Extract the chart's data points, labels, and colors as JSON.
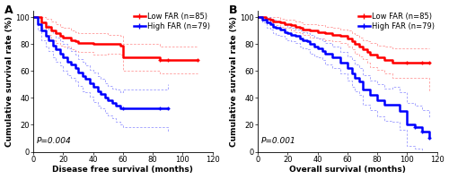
{
  "panel_A": {
    "label": "A",
    "xlabel": "Disease free survival (months)",
    "ylabel": "Cumulative survival rate (%)",
    "pvalue": "P=0.004",
    "xlim": [
      0,
      120
    ],
    "ylim": [
      0,
      105
    ],
    "xticks": [
      0,
      20,
      40,
      60,
      80,
      100,
      120
    ],
    "yticks": [
      0,
      20,
      40,
      60,
      80,
      100
    ],
    "low_far": {
      "label": "Low FAR (n=85)",
      "color": "#ff0000",
      "x": [
        0,
        5,
        8,
        12,
        15,
        18,
        20,
        25,
        28,
        30,
        35,
        40,
        45,
        50,
        55,
        58,
        60,
        65,
        70,
        75,
        80,
        85,
        90,
        110
      ],
      "y": [
        100,
        96,
        93,
        90,
        88,
        86,
        85,
        83,
        82,
        81,
        81,
        80,
        80,
        80,
        80,
        79,
        70,
        70,
        70,
        70,
        70,
        68,
        68,
        68
      ]
    },
    "low_far_ci_upper": {
      "color": "#ff0000",
      "x": [
        0,
        5,
        8,
        12,
        15,
        18,
        20,
        25,
        28,
        30,
        35,
        40,
        45,
        50,
        55,
        58,
        60,
        65,
        70,
        75,
        80,
        85,
        90,
        110
      ],
      "y": [
        100,
        100,
        99,
        97,
        95,
        93,
        92,
        90,
        89,
        88,
        88,
        88,
        88,
        87,
        87,
        86,
        80,
        80,
        80,
        80,
        80,
        78,
        78,
        78
      ]
    },
    "low_far_ci_lower": {
      "color": "#ff0000",
      "x": [
        0,
        5,
        8,
        12,
        15,
        18,
        20,
        25,
        28,
        30,
        35,
        40,
        45,
        50,
        55,
        58,
        60,
        65,
        70,
        75,
        80,
        85,
        90,
        110
      ],
      "y": [
        100,
        92,
        87,
        83,
        81,
        79,
        78,
        76,
        75,
        74,
        74,
        72,
        72,
        73,
        73,
        72,
        60,
        60,
        60,
        60,
        60,
        58,
        58,
        58
      ]
    },
    "high_far": {
      "label": "High FAR (n=79)",
      "color": "#0000ff",
      "x": [
        0,
        3,
        5,
        8,
        10,
        13,
        15,
        18,
        20,
        23,
        25,
        28,
        30,
        33,
        35,
        38,
        40,
        43,
        45,
        48,
        50,
        53,
        55,
        58,
        60,
        85,
        90
      ],
      "y": [
        100,
        95,
        90,
        86,
        83,
        79,
        76,
        73,
        70,
        67,
        65,
        62,
        59,
        56,
        54,
        51,
        48,
        45,
        43,
        40,
        38,
        36,
        34,
        32,
        32,
        32,
        32
      ]
    },
    "high_far_ci_upper": {
      "color": "#0000ff",
      "x": [
        0,
        3,
        5,
        8,
        10,
        13,
        15,
        18,
        20,
        23,
        25,
        28,
        30,
        33,
        35,
        38,
        40,
        43,
        45,
        48,
        50,
        53,
        55,
        58,
        60,
        85,
        90
      ],
      "y": [
        100,
        100,
        97,
        94,
        91,
        88,
        85,
        82,
        80,
        77,
        75,
        72,
        69,
        67,
        64,
        61,
        59,
        56,
        54,
        51,
        49,
        47,
        46,
        44,
        46,
        46,
        50
      ]
    },
    "high_far_ci_lower": {
      "color": "#0000ff",
      "x": [
        0,
        3,
        5,
        8,
        10,
        13,
        15,
        18,
        20,
        23,
        25,
        28,
        30,
        33,
        35,
        38,
        40,
        43,
        45,
        48,
        50,
        53,
        55,
        58,
        60,
        85,
        90
      ],
      "y": [
        100,
        90,
        83,
        78,
        75,
        70,
        67,
        64,
        60,
        57,
        55,
        52,
        49,
        45,
        44,
        41,
        37,
        34,
        32,
        29,
        27,
        25,
        22,
        20,
        18,
        18,
        14
      ]
    }
  },
  "panel_B": {
    "label": "B",
    "xlabel": "Overall survival (months)",
    "ylabel": "Cumulative survival rate (%)",
    "pvalue": "P=0.001",
    "xlim": [
      0,
      120
    ],
    "ylim": [
      0,
      105
    ],
    "xticks": [
      0,
      20,
      40,
      60,
      80,
      100,
      120
    ],
    "yticks": [
      0,
      20,
      40,
      60,
      80,
      100
    ],
    "low_far": {
      "label": "Low FAR (n=85)",
      "color": "#ff0000",
      "x": [
        0,
        5,
        8,
        10,
        13,
        15,
        18,
        22,
        25,
        28,
        30,
        35,
        40,
        45,
        50,
        55,
        60,
        63,
        65,
        68,
        70,
        73,
        75,
        80,
        85,
        90,
        95,
        100,
        110,
        115
      ],
      "y": [
        100,
        99,
        98,
        97,
        97,
        96,
        95,
        94,
        93,
        92,
        91,
        90,
        89,
        88,
        87,
        86,
        84,
        82,
        80,
        78,
        76,
        74,
        72,
        70,
        68,
        66,
        66,
        66,
        66,
        66
      ]
    },
    "low_far_ci_upper": {
      "color": "#ff0000",
      "x": [
        0,
        5,
        8,
        10,
        13,
        15,
        18,
        22,
        25,
        28,
        30,
        35,
        40,
        45,
        50,
        55,
        60,
        63,
        65,
        68,
        70,
        73,
        75,
        80,
        85,
        90,
        95,
        100,
        110,
        115
      ],
      "y": [
        100,
        100,
        100,
        100,
        100,
        99,
        98,
        98,
        97,
        96,
        95,
        95,
        94,
        93,
        92,
        91,
        90,
        88,
        87,
        85,
        83,
        82,
        81,
        79,
        78,
        77,
        77,
        77,
        77,
        77
      ]
    },
    "low_far_ci_lower": {
      "color": "#ff0000",
      "x": [
        0,
        5,
        8,
        10,
        13,
        15,
        18,
        22,
        25,
        28,
        30,
        35,
        40,
        45,
        50,
        55,
        60,
        63,
        65,
        68,
        70,
        73,
        75,
        80,
        85,
        90,
        95,
        100,
        110,
        115
      ],
      "y": [
        100,
        98,
        96,
        94,
        94,
        93,
        92,
        90,
        89,
        88,
        87,
        85,
        84,
        83,
        82,
        81,
        78,
        76,
        73,
        71,
        69,
        66,
        63,
        61,
        58,
        55,
        55,
        55,
        55,
        45
      ]
    },
    "high_far": {
      "label": "High FAR (n=79)",
      "color": "#0000ff",
      "x": [
        0,
        3,
        6,
        8,
        10,
        12,
        15,
        18,
        20,
        22,
        25,
        28,
        30,
        33,
        35,
        38,
        40,
        43,
        45,
        50,
        55,
        60,
        63,
        65,
        68,
        70,
        75,
        80,
        85,
        90,
        95,
        100,
        105,
        110,
        115
      ],
      "y": [
        100,
        98,
        96,
        95,
        93,
        92,
        91,
        89,
        88,
        87,
        86,
        84,
        83,
        82,
        80,
        78,
        77,
        75,
        73,
        70,
        66,
        62,
        58,
        55,
        52,
        46,
        42,
        38,
        35,
        35,
        30,
        20,
        18,
        15,
        10
      ]
    },
    "high_far_ci_upper": {
      "color": "#0000ff",
      "x": [
        0,
        3,
        6,
        8,
        10,
        12,
        15,
        18,
        20,
        22,
        25,
        28,
        30,
        33,
        35,
        38,
        40,
        43,
        45,
        50,
        55,
        60,
        63,
        65,
        68,
        70,
        75,
        80,
        85,
        90,
        95,
        100,
        105,
        110,
        115
      ],
      "y": [
        100,
        100,
        100,
        99,
        98,
        97,
        96,
        94,
        93,
        92,
        91,
        90,
        89,
        88,
        87,
        85,
        84,
        82,
        81,
        78,
        74,
        71,
        68,
        65,
        62,
        57,
        53,
        50,
        47,
        48,
        44,
        36,
        34,
        31,
        25
      ]
    },
    "high_far_ci_lower": {
      "color": "#0000ff",
      "x": [
        0,
        3,
        6,
        8,
        10,
        12,
        15,
        18,
        20,
        22,
        25,
        28,
        30,
        33,
        35,
        38,
        40,
        43,
        45,
        50,
        55,
        60,
        63,
        65,
        68,
        70,
        75,
        80,
        85,
        90,
        95,
        100,
        105,
        110,
        115
      ],
      "y": [
        100,
        96,
        92,
        91,
        88,
        87,
        86,
        84,
        83,
        82,
        81,
        78,
        77,
        76,
        73,
        71,
        70,
        68,
        65,
        62,
        58,
        53,
        48,
        45,
        42,
        35,
        31,
        26,
        23,
        22,
        16,
        4,
        2,
        0,
        0
      ]
    }
  },
  "line_width": 1.8,
  "ci_linewidth": 0.6,
  "label_font_size": 6.5,
  "tick_font_size": 6,
  "legend_font_size": 6,
  "pvalue_font_size": 6.5,
  "panel_label_font_size": 9,
  "background_color": "#ffffff"
}
